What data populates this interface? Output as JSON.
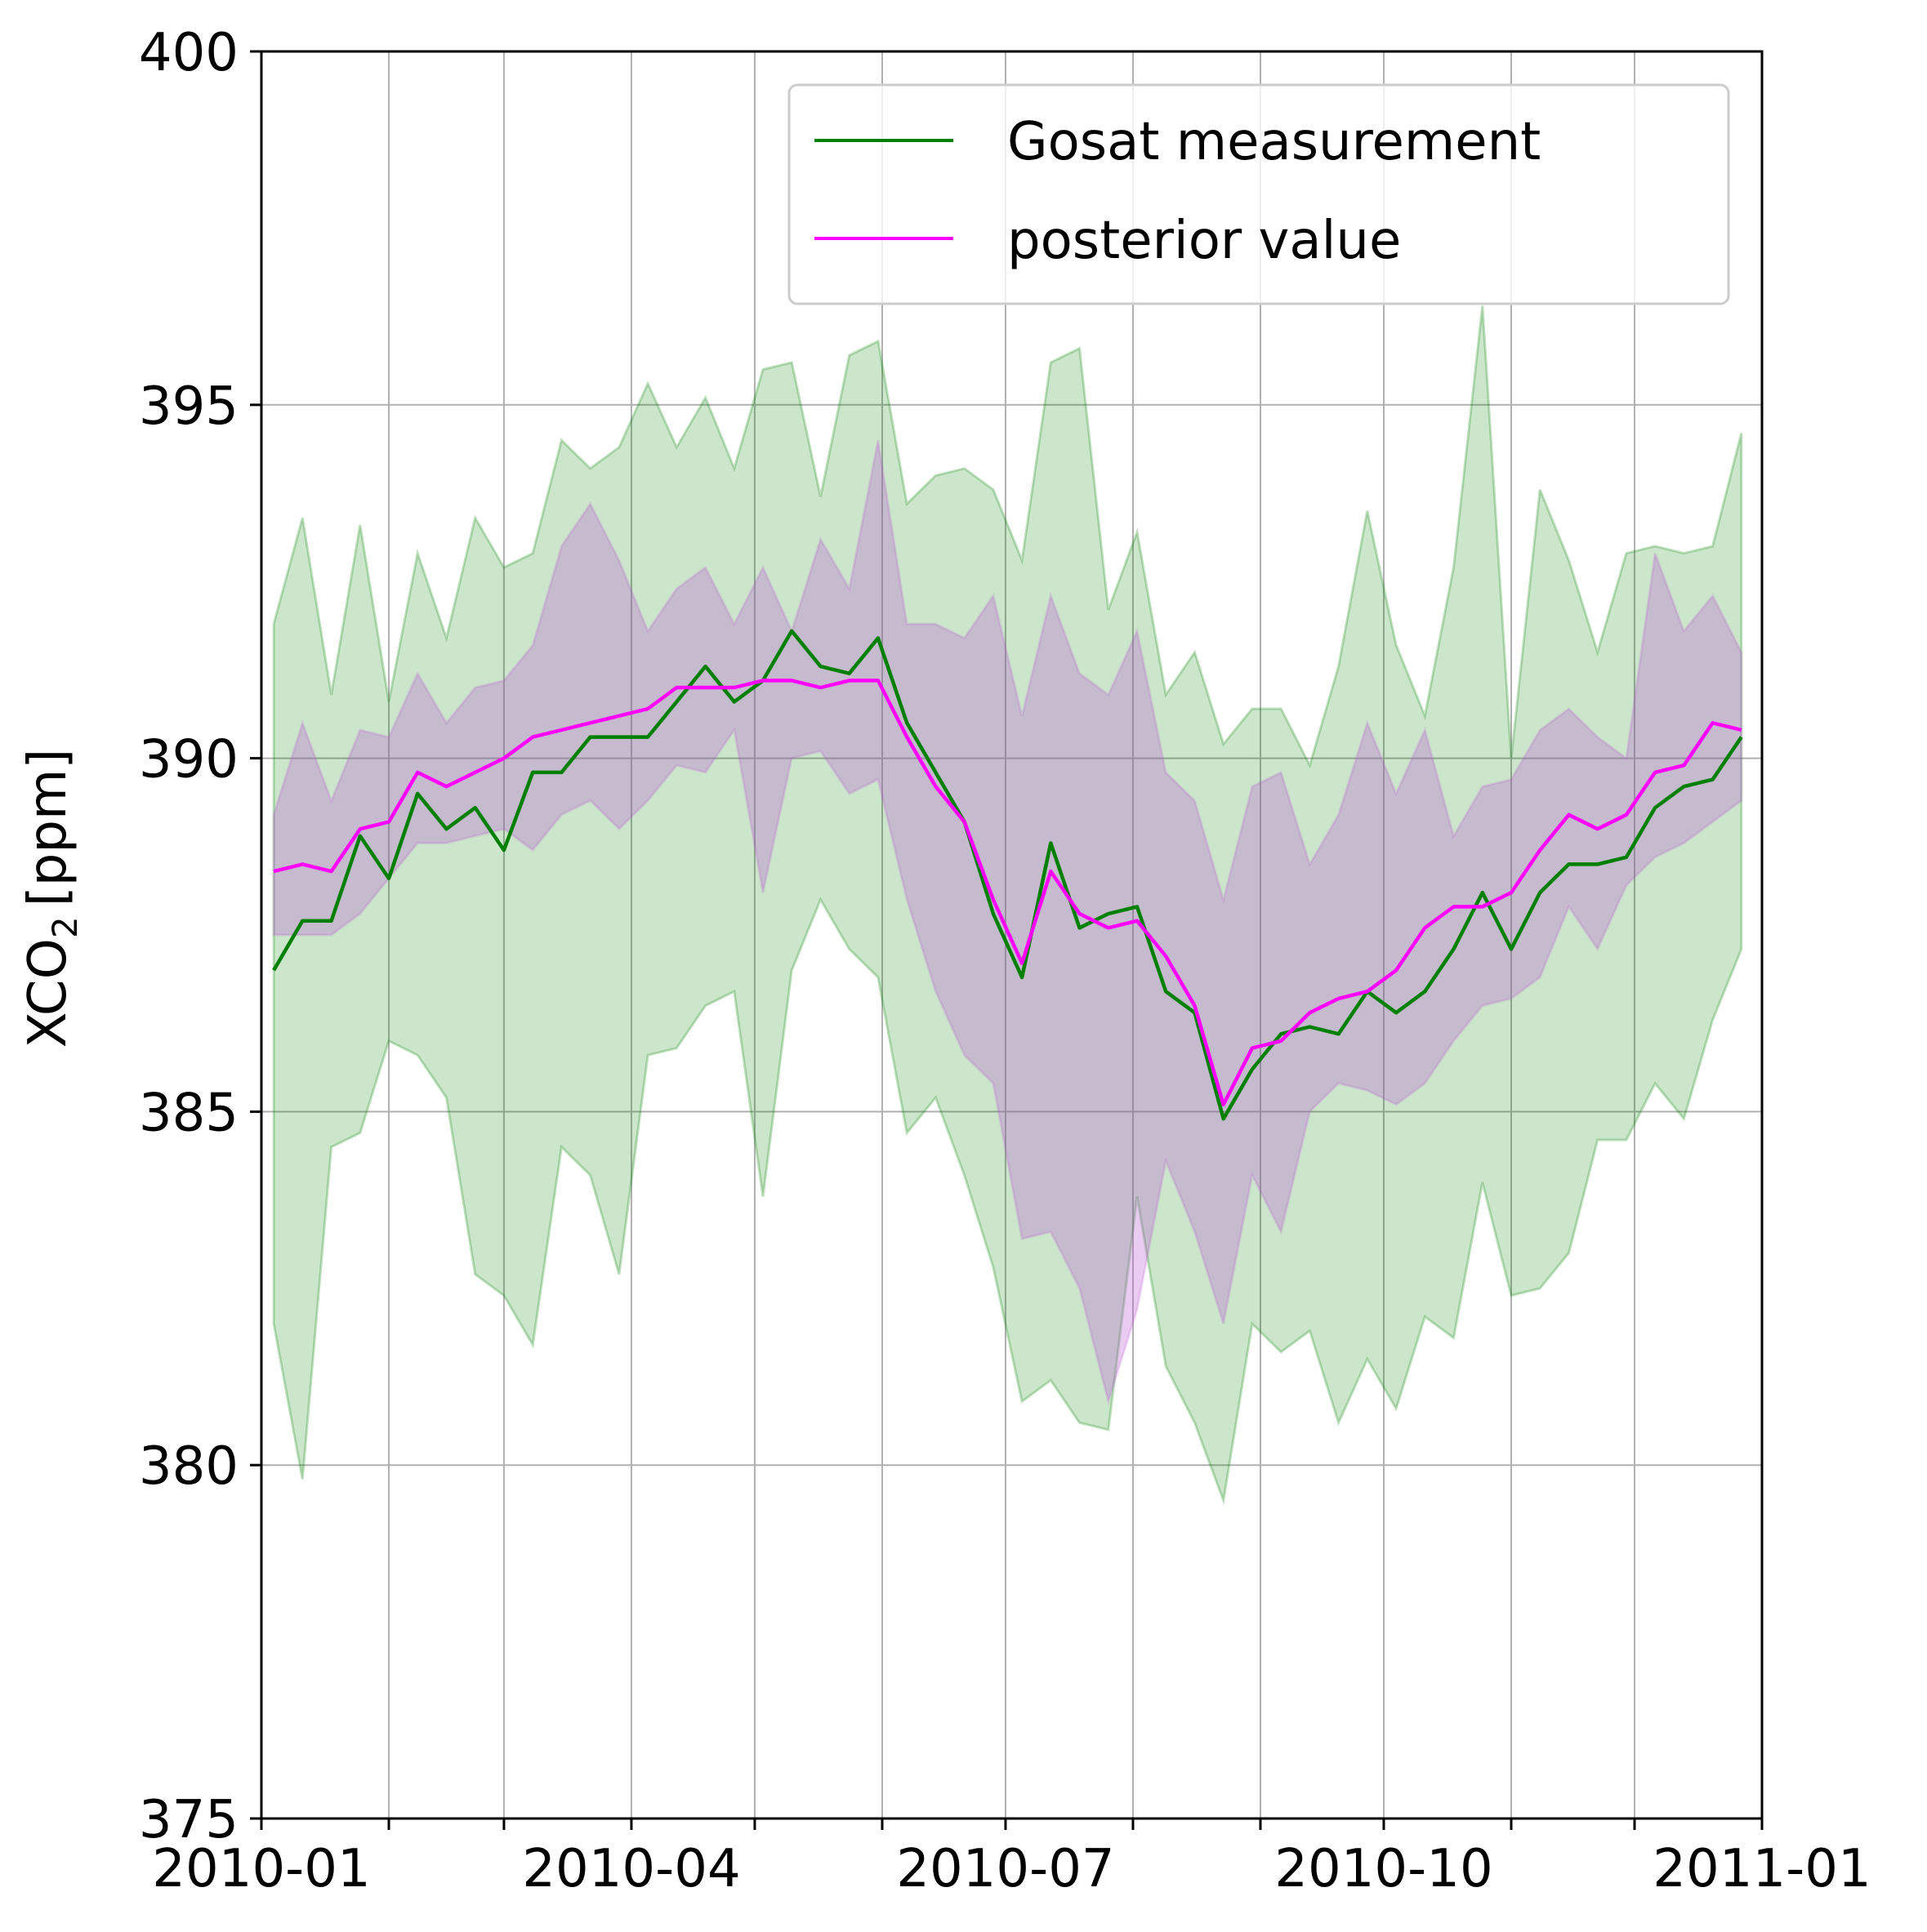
{
  "chart_data": {
    "type": "line",
    "ylabel": "XCO",
    "ylabel_sub": "2",
    "ylabel_unit": "[ppm]",
    "xlim": [
      "2010-01-01",
      "2011-01-01"
    ],
    "ylim": [
      375,
      400
    ],
    "yticks": [
      375,
      380,
      385,
      390,
      395,
      400
    ],
    "xticks": [
      "2010-01",
      "2010-04",
      "2010-07",
      "2010-10",
      "2011-01"
    ],
    "x_gridlines": [
      "2010-01-01",
      "2010-02-01",
      "2010-03-01",
      "2010-04-01",
      "2010-05-01",
      "2010-06-01",
      "2010-07-01",
      "2010-08-01",
      "2010-09-01",
      "2010-10-01",
      "2010-11-01",
      "2010-12-01",
      "2011-01-01"
    ],
    "grid": true,
    "legend": {
      "placement": "top-right"
    },
    "x": [
      "2010-01-04",
      "2010-01-11",
      "2010-01-18",
      "2010-01-25",
      "2010-02-01",
      "2010-02-08",
      "2010-02-15",
      "2010-02-22",
      "2010-03-01",
      "2010-03-08",
      "2010-03-15",
      "2010-03-22",
      "2010-03-29",
      "2010-04-05",
      "2010-04-12",
      "2010-04-19",
      "2010-04-26",
      "2010-05-03",
      "2010-05-10",
      "2010-05-17",
      "2010-05-24",
      "2010-05-31",
      "2010-06-07",
      "2010-06-14",
      "2010-06-21",
      "2010-06-28",
      "2010-07-05",
      "2010-07-12",
      "2010-07-19",
      "2010-07-26",
      "2010-08-02",
      "2010-08-09",
      "2010-08-16",
      "2010-08-23",
      "2010-08-30",
      "2010-09-06",
      "2010-09-13",
      "2010-09-20",
      "2010-09-27",
      "2010-10-04",
      "2010-10-11",
      "2010-10-18",
      "2010-10-25",
      "2010-11-01",
      "2010-11-08",
      "2010-11-15",
      "2010-11-22",
      "2010-11-29",
      "2010-12-06",
      "2010-12-13",
      "2010-12-20",
      "2010-12-27"
    ],
    "series": [
      {
        "name": "Gosat measurement",
        "color": "#008000",
        "band_color": "#008000",
        "values": [
          387.0,
          387.7,
          387.7,
          388.9,
          388.3,
          389.5,
          389.0,
          389.3,
          388.7,
          389.8,
          389.8,
          390.3,
          390.3,
          390.3,
          390.8,
          391.3,
          390.8,
          391.1,
          391.8,
          391.3,
          391.2,
          391.7,
          390.5,
          389.8,
          389.1,
          387.8,
          386.9,
          388.8,
          387.6,
          387.8,
          387.9,
          386.7,
          386.4,
          384.9,
          385.6,
          386.1,
          386.2,
          386.1,
          386.7,
          386.4,
          386.7,
          387.3,
          388.1,
          387.3,
          388.1,
          388.5,
          388.5,
          388.6,
          389.3,
          389.6,
          389.7,
          390.3
        ],
        "upper": [
          391.9,
          393.4,
          390.9,
          393.3,
          390.8,
          392.9,
          391.7,
          393.4,
          392.7,
          392.9,
          394.5,
          394.1,
          394.4,
          395.3,
          394.4,
          395.1,
          394.1,
          395.5,
          395.6,
          393.7,
          395.7,
          395.9,
          393.6,
          394.0,
          394.1,
          393.8,
          392.8,
          395.6,
          395.8,
          392.1,
          393.2,
          390.9,
          391.5,
          390.2,
          390.7,
          390.7,
          389.9,
          391.3,
          393.5,
          391.6,
          390.6,
          392.7,
          396.4,
          390.0,
          393.8,
          392.8,
          391.5,
          392.9,
          393.0,
          392.9,
          393.0,
          394.6
        ],
        "lower": [
          382.0,
          379.8,
          384.5,
          384.7,
          386.0,
          385.8,
          385.2,
          382.7,
          382.4,
          381.7,
          384.5,
          384.1,
          382.7,
          385.8,
          385.9,
          386.5,
          386.7,
          383.8,
          387.0,
          388.0,
          387.3,
          386.9,
          384.7,
          385.2,
          384.1,
          382.8,
          380.9,
          381.2,
          380.6,
          380.5,
          383.8,
          381.4,
          380.6,
          379.5,
          382.0,
          381.6,
          381.9,
          380.6,
          381.5,
          380.8,
          382.1,
          381.8,
          384.0,
          382.4,
          382.5,
          383.0,
          384.6,
          384.6,
          385.4,
          384.9,
          386.3,
          387.3
        ]
      },
      {
        "name": "posterior value",
        "color": "#ff00ff",
        "band_color": "#ba55d3",
        "values": [
          388.4,
          388.5,
          388.4,
          389.0,
          389.1,
          389.8,
          389.6,
          389.8,
          390.0,
          390.3,
          390.4,
          390.5,
          390.6,
          390.7,
          391.0,
          391.0,
          391.0,
          391.1,
          391.1,
          391.0,
          391.1,
          391.1,
          390.3,
          389.6,
          389.1,
          388.0,
          387.1,
          388.4,
          387.8,
          387.6,
          387.7,
          387.2,
          386.5,
          385.1,
          385.9,
          386.0,
          386.4,
          386.6,
          386.7,
          387.0,
          387.6,
          387.9,
          387.9,
          388.1,
          388.7,
          389.2,
          389.0,
          389.2,
          389.8,
          389.9,
          390.5,
          390.4
        ],
        "upper": [
          389.2,
          390.5,
          389.4,
          390.4,
          390.3,
          391.2,
          390.5,
          391.0,
          391.1,
          391.6,
          393.0,
          393.6,
          392.8,
          391.8,
          392.4,
          392.7,
          391.9,
          392.7,
          391.8,
          393.1,
          392.4,
          394.5,
          391.9,
          391.9,
          391.7,
          392.3,
          390.6,
          392.3,
          391.2,
          390.9,
          391.8,
          389.8,
          389.4,
          388.0,
          389.6,
          389.8,
          388.5,
          389.2,
          390.5,
          389.5,
          390.4,
          388.9,
          389.6,
          389.7,
          390.4,
          390.7,
          390.3,
          390.0,
          392.9,
          391.8,
          392.3,
          391.5
        ],
        "lower": [
          387.5,
          387.5,
          387.5,
          387.8,
          388.3,
          388.8,
          388.8,
          388.9,
          389.0,
          388.7,
          389.2,
          389.4,
          389.0,
          389.4,
          389.9,
          389.8,
          390.4,
          388.1,
          390.0,
          390.1,
          389.5,
          389.7,
          388.0,
          386.7,
          385.8,
          385.4,
          383.2,
          383.3,
          382.5,
          380.9,
          382.2,
          384.3,
          383.3,
          382.0,
          384.1,
          383.3,
          385.0,
          385.4,
          385.3,
          385.1,
          385.4,
          386.0,
          386.5,
          386.6,
          386.9,
          387.9,
          387.3,
          388.2,
          388.6,
          388.8,
          389.1,
          389.4
        ]
      }
    ]
  }
}
